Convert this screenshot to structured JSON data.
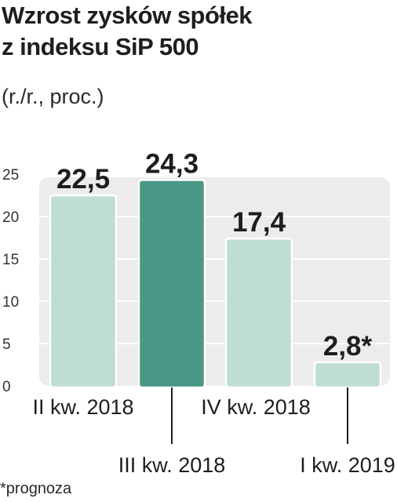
{
  "header": {
    "title_line1": "Wzrost zysków spółek",
    "title_line2": "z indeksu SiP 500",
    "subtitle": "(r./r., proc.)"
  },
  "footnote": "*prognoza",
  "colors": {
    "bar": "#bfddd3",
    "bar_highlight": "#4b9785",
    "bar_stroke": "#ffffff",
    "plot_bg": "#ececec",
    "gridline": "#ffffff",
    "text": "#1e1e1e"
  },
  "chart_data": {
    "type": "bar",
    "categories": [
      "II kw. 2018",
      "III kw. 2018",
      "IV kw. 2018",
      "I kw. 2019"
    ],
    "values": [
      22.5,
      24.3,
      17.4,
      2.8
    ],
    "data_labels": [
      "22,5",
      "24,3",
      "17,4",
      "2,8*"
    ],
    "highlight_index": 1,
    "yticks": [
      0,
      5,
      10,
      15,
      20,
      25
    ],
    "ylim": [
      0,
      25
    ],
    "grid": true,
    "title": "Wzrost zysków spółek z indeksu SiP 500",
    "subtitle": "(r./r., proc.)",
    "xlabel": "",
    "ylabel": ""
  }
}
